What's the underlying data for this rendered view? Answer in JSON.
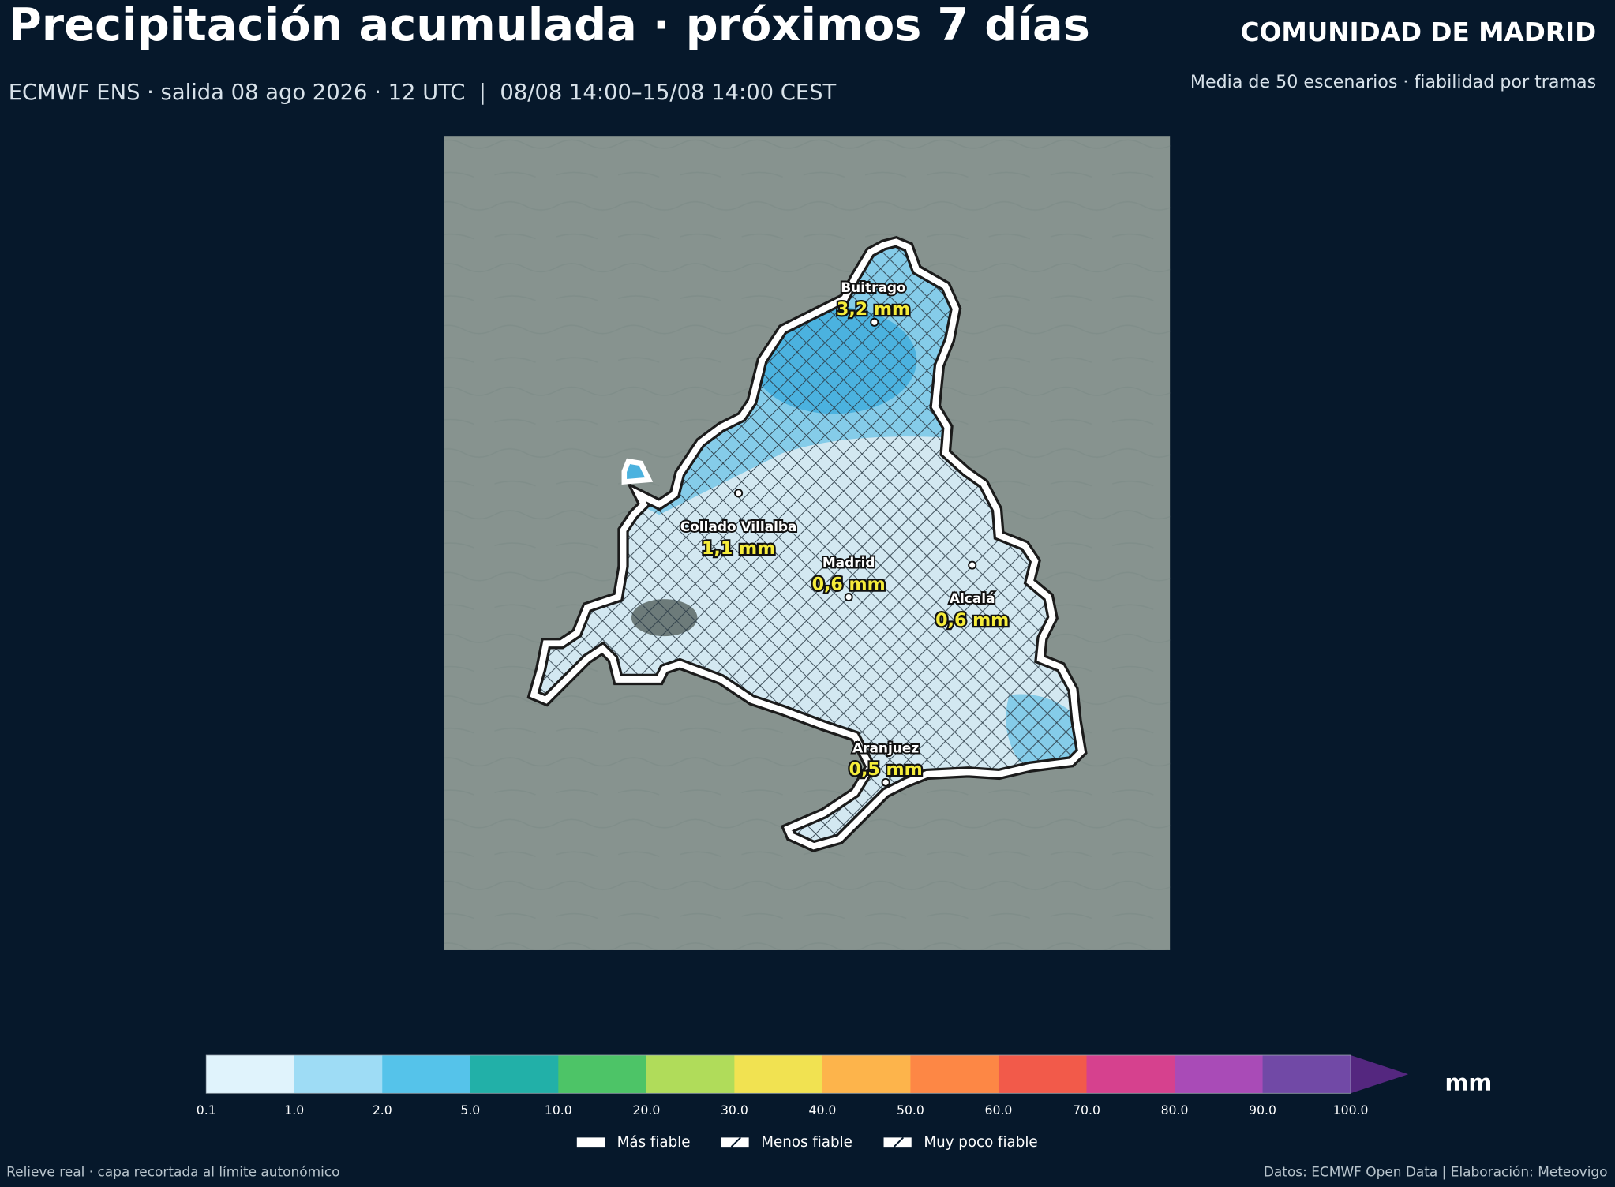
{
  "header": {
    "title": "Precipitación acumulada · próximos 7 días",
    "subtitle": "ECMWF ENS · salida 08 ago 2026 · 12 UTC  |  08/08 14:00–15/08 14:00 CEST",
    "region": "COMUNIDAD DE MADRID",
    "note": "Media de 50 escenarios · fiabilidad por tramas"
  },
  "map": {
    "places": [
      {
        "name": "Buitrago",
        "label": "3,2 mm"
      },
      {
        "name": "Collado Villalba",
        "label": "1,1 mm"
      },
      {
        "name": "Madrid",
        "label": "0,6 mm"
      },
      {
        "name": "Alcalá",
        "label": "0,6 mm"
      },
      {
        "name": "Aranjuez",
        "label": "0,5 mm"
      }
    ]
  },
  "colorbar": {
    "ticks": [
      "0.1",
      "1.0",
      "2.0",
      "5.0",
      "10.0",
      "20.0",
      "30.0",
      "40.0",
      "50.0",
      "60.0",
      "70.0",
      "80.0",
      "90.0",
      "100.0"
    ],
    "colors": [
      "#e0f3fc",
      "#9edcf5",
      "#55c3ea",
      "#22b0a8",
      "#4dc467",
      "#b0dc5a",
      "#f1e251",
      "#fdb44b",
      "#fd8745",
      "#f25a4a",
      "#d6418e",
      "#a94bb7",
      "#7149a6",
      "#54277f"
    ],
    "unit": "mm"
  },
  "legend": {
    "items": [
      "Más fiable",
      "Menos fiable",
      "Muy poco fiable"
    ]
  },
  "footer": {
    "left": "Relieve real · capa recortada al límite autonómico",
    "right": "Datos: ECMWF Open Data | Elaboración: Meteovigo"
  }
}
